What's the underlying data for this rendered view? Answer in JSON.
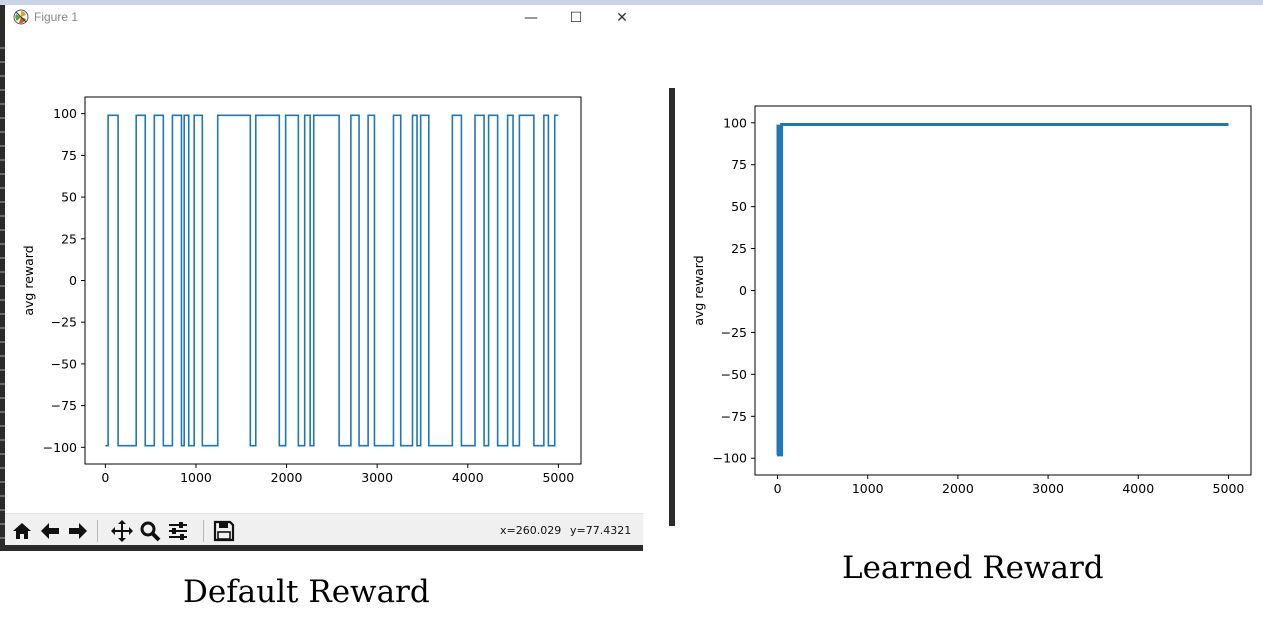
{
  "window": {
    "title": "Figure 1",
    "buttons": {
      "minimize": "—",
      "maximize": "☐",
      "close": "✕"
    }
  },
  "toolbar": {
    "buttons": [
      "home-icon",
      "back-icon",
      "forward-icon",
      "pan-icon",
      "zoom-icon",
      "configure-icon",
      "save-icon"
    ],
    "coord_x": "x=260.029",
    "coord_y": "y=77.4321"
  },
  "captions": {
    "left": "Default Reward",
    "right": "Learned Reward"
  },
  "colors": {
    "line": "#1f77b4"
  },
  "chart_data": [
    {
      "type": "line",
      "title": "",
      "xlabel": "",
      "ylabel": "avg reward",
      "xlim": [
        -225,
        5250
      ],
      "ylim": [
        -110,
        110
      ],
      "xticks": [
        0,
        1000,
        2000,
        3000,
        4000,
        5000
      ],
      "yticks": [
        -100,
        -75,
        -50,
        -25,
        0,
        25,
        50,
        75,
        100
      ],
      "series": [
        {
          "x": [
            0,
            30,
            30,
            140,
            140,
            340,
            340,
            440,
            440,
            540,
            540,
            640,
            640,
            740,
            740,
            840,
            840,
            870,
            870,
            920,
            920,
            980,
            980,
            1070,
            1070,
            1240,
            1240,
            1600,
            1600,
            1660,
            1660,
            1920,
            1920,
            1990,
            1990,
            2130,
            2130,
            2200,
            2200,
            2260,
            2260,
            2300,
            2300,
            2580,
            2580,
            2710,
            2710,
            2800,
            2800,
            2900,
            2900,
            2970,
            2970,
            3180,
            3180,
            3260,
            3260,
            3390,
            3390,
            3440,
            3440,
            3480,
            3480,
            3570,
            3570,
            3830,
            3830,
            3930,
            3930,
            4080,
            4080,
            4180,
            4180,
            4230,
            4230,
            4330,
            4330,
            4440,
            4440,
            4500,
            4500,
            4570,
            4570,
            4730,
            4730,
            4840,
            4840,
            4890,
            4890,
            4960,
            4960,
            5000
          ],
          "y": [
            -99,
            -99,
            99,
            99,
            -99,
            -99,
            99,
            99,
            -99,
            -99,
            99,
            99,
            -99,
            -99,
            99,
            99,
            -99,
            -99,
            99,
            99,
            -99,
            -99,
            99,
            99,
            -99,
            -99,
            99,
            99,
            -99,
            -99,
            99,
            99,
            -99,
            -99,
            99,
            99,
            -99,
            -99,
            99,
            99,
            -99,
            -99,
            99,
            99,
            -99,
            -99,
            99,
            99,
            -99,
            -99,
            99,
            99,
            -99,
            -99,
            99,
            99,
            -99,
            -99,
            99,
            99,
            -99,
            -99,
            99,
            99,
            -99,
            -99,
            99,
            99,
            -99,
            -99,
            99,
            99,
            -99,
            -99,
            99,
            99,
            -99,
            -99,
            99,
            99,
            -99,
            -99,
            99,
            99,
            -99,
            -99,
            99,
            99,
            -99,
            -99,
            99,
            99
          ]
        }
      ]
    },
    {
      "type": "line",
      "title": "",
      "xlabel": "",
      "ylabel": "avg reward",
      "xlim": [
        -250,
        5250
      ],
      "ylim": [
        -110,
        110
      ],
      "xticks": [
        0,
        1000,
        2000,
        3000,
        4000,
        5000
      ],
      "yticks": [
        -100,
        -75,
        -50,
        -25,
        0,
        25,
        50,
        75,
        100
      ],
      "series": [
        {
          "x": [
            0,
            5,
            5,
            10,
            10,
            15,
            15,
            20,
            20,
            25,
            25,
            30,
            30,
            35,
            35,
            40,
            40,
            45,
            45,
            5000
          ],
          "y": [
            -98,
            -98,
            98,
            98,
            -98,
            -98,
            98,
            98,
            -98,
            -98,
            98,
            98,
            -98,
            -98,
            98,
            98,
            -98,
            -98,
            99,
            99
          ]
        }
      ]
    }
  ]
}
